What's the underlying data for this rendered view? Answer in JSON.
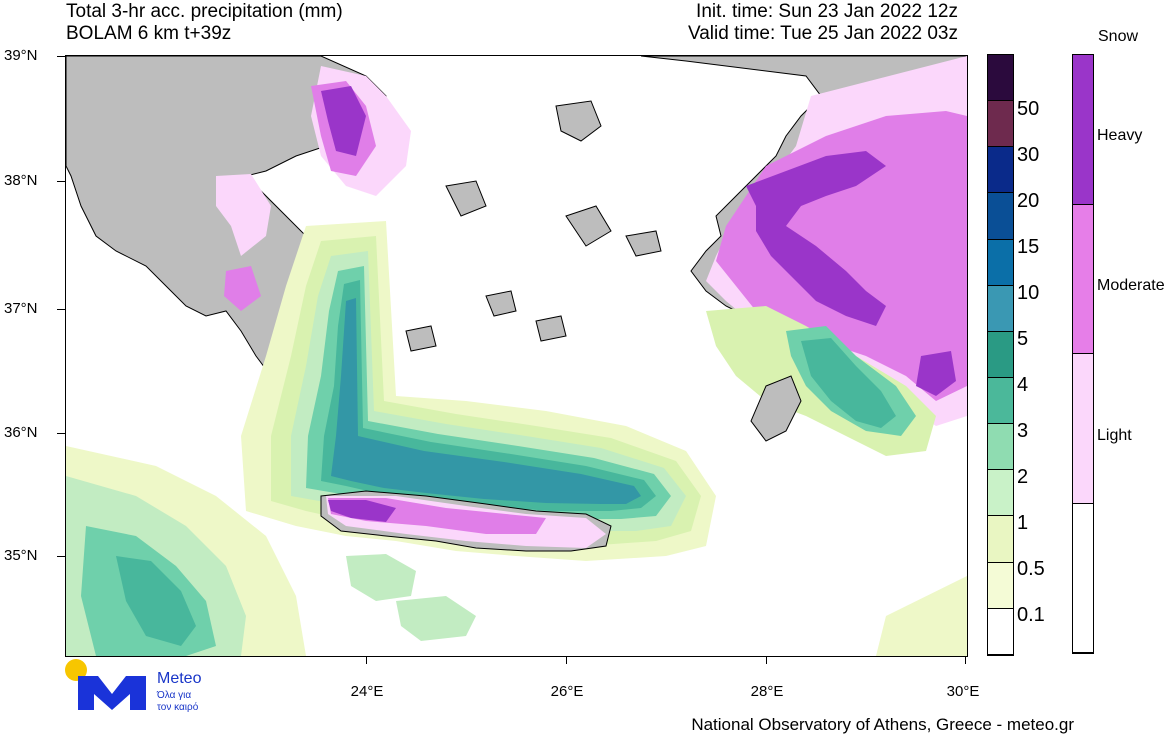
{
  "header": {
    "title": "Total 3-hr acc. precipitation (mm)",
    "model": "BOLAM 6 km t+39z",
    "init_time": "Init. time: Sun 23 Jan 2022 12z",
    "valid_time": "Valid time: Tue 25 Jan 2022 03z"
  },
  "map": {
    "lat_labels": [
      "39°N",
      "38°N",
      "37°N",
      "36°N",
      "35°N"
    ],
    "lon_labels": [
      "24°E",
      "26°E",
      "28°E",
      "30°E"
    ],
    "colors": {
      "land": "#bdbdbd",
      "sea": "#ffffff",
      "p01": "#eef8c8",
      "p05": "#d9f2b0",
      "p1": "#c2ecc2",
      "p2": "#9fe3bb",
      "p3": "#6fd0ab",
      "p4": "#48b79c",
      "p5": "#3397a6",
      "snow_light": "#fbd7fb",
      "snow_mod": "#e07ee8",
      "snow_heavy": "#9a35c9"
    }
  },
  "colorbar": {
    "labels": [
      "50",
      "30",
      "20",
      "15",
      "10",
      "5",
      "4",
      "3",
      "2",
      "1",
      "0.5",
      "0.1"
    ],
    "colors": [
      "#2b0a3d",
      "#6e2a4e",
      "#0a2a8a",
      "#0a4f96",
      "#0b6fa8",
      "#3a98b3",
      "#2a9a84",
      "#4bb89a",
      "#8fdcb1",
      "#c9f2c8",
      "#e9f6c2",
      "#f4fbd6",
      "#ffffff"
    ]
  },
  "snow_legend": {
    "title": "Snow",
    "labels": [
      "Heavy",
      "Moderate",
      "Light"
    ],
    "colors": [
      "#9a35c9",
      "#e67ee8",
      "#fbd7fb",
      "#ffffff"
    ]
  },
  "logo": {
    "name": "Meteo",
    "tagline_1": "Όλα για",
    "tagline_2": "τον καιρό"
  },
  "footer": {
    "credit": "National Observatory of Athens, Greece - meteo.gr"
  }
}
